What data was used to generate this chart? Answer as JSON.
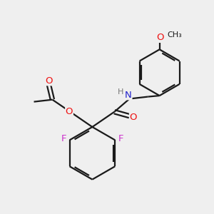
{
  "bg_color": "#efefef",
  "bond_color": "#1a1a1a",
  "bond_width": 1.6,
  "atom_colors": {
    "O": "#ee1111",
    "N": "#2222cc",
    "F": "#cc33cc",
    "H": "#777777",
    "C": "#1a1a1a"
  },
  "font_size_atom": 9.5,
  "font_size_small": 8.0,
  "font_size_methyl": 8.5
}
